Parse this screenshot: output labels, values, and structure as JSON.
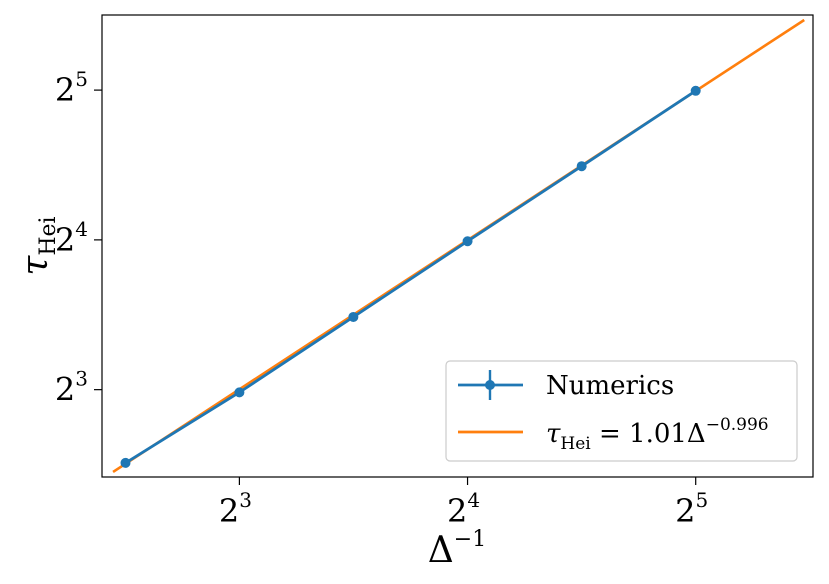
{
  "chart_data": {
    "type": "line",
    "xscale": "log2",
    "yscale": "log2",
    "xlim": [
      5.27,
      45.7
    ],
    "ylim": [
      5.34,
      45.3
    ],
    "xlabel_symbol": "Δ",
    "xlabel_exp": "−1",
    "ylabel_symbol": "τ",
    "ylabel_sub": "Hei",
    "x_ticks": [
      {
        "base": "2",
        "exp": "3",
        "value": 8
      },
      {
        "base": "2",
        "exp": "4",
        "value": 16
      },
      {
        "base": "2",
        "exp": "5",
        "value": 32
      }
    ],
    "y_ticks": [
      {
        "base": "2",
        "exp": "3",
        "value": 8
      },
      {
        "base": "2",
        "exp": "4",
        "value": 16
      },
      {
        "base": "2",
        "exp": "5",
        "value": 32
      }
    ],
    "series": [
      {
        "name": "Numerics",
        "style": "errorbar-line-markers",
        "color": "#1f77b4",
        "x": [
          5.66,
          8,
          11.31,
          16,
          22.63,
          32
        ],
        "y": [
          5.7,
          7.9,
          11.2,
          15.9,
          22.5,
          31.9
        ]
      },
      {
        "name_symbol": "τ",
        "name_sub": "Hei",
        "name_rest": " = 1.01Δ",
        "name_exp": "−0.996",
        "style": "line",
        "color": "#ff7f0e",
        "fit": {
          "a": 1.01,
          "b": -0.996
        },
        "x_range": [
          5.45,
          44.5
        ]
      }
    ],
    "legend": {
      "position": "lower-right"
    },
    "grid": false
  }
}
